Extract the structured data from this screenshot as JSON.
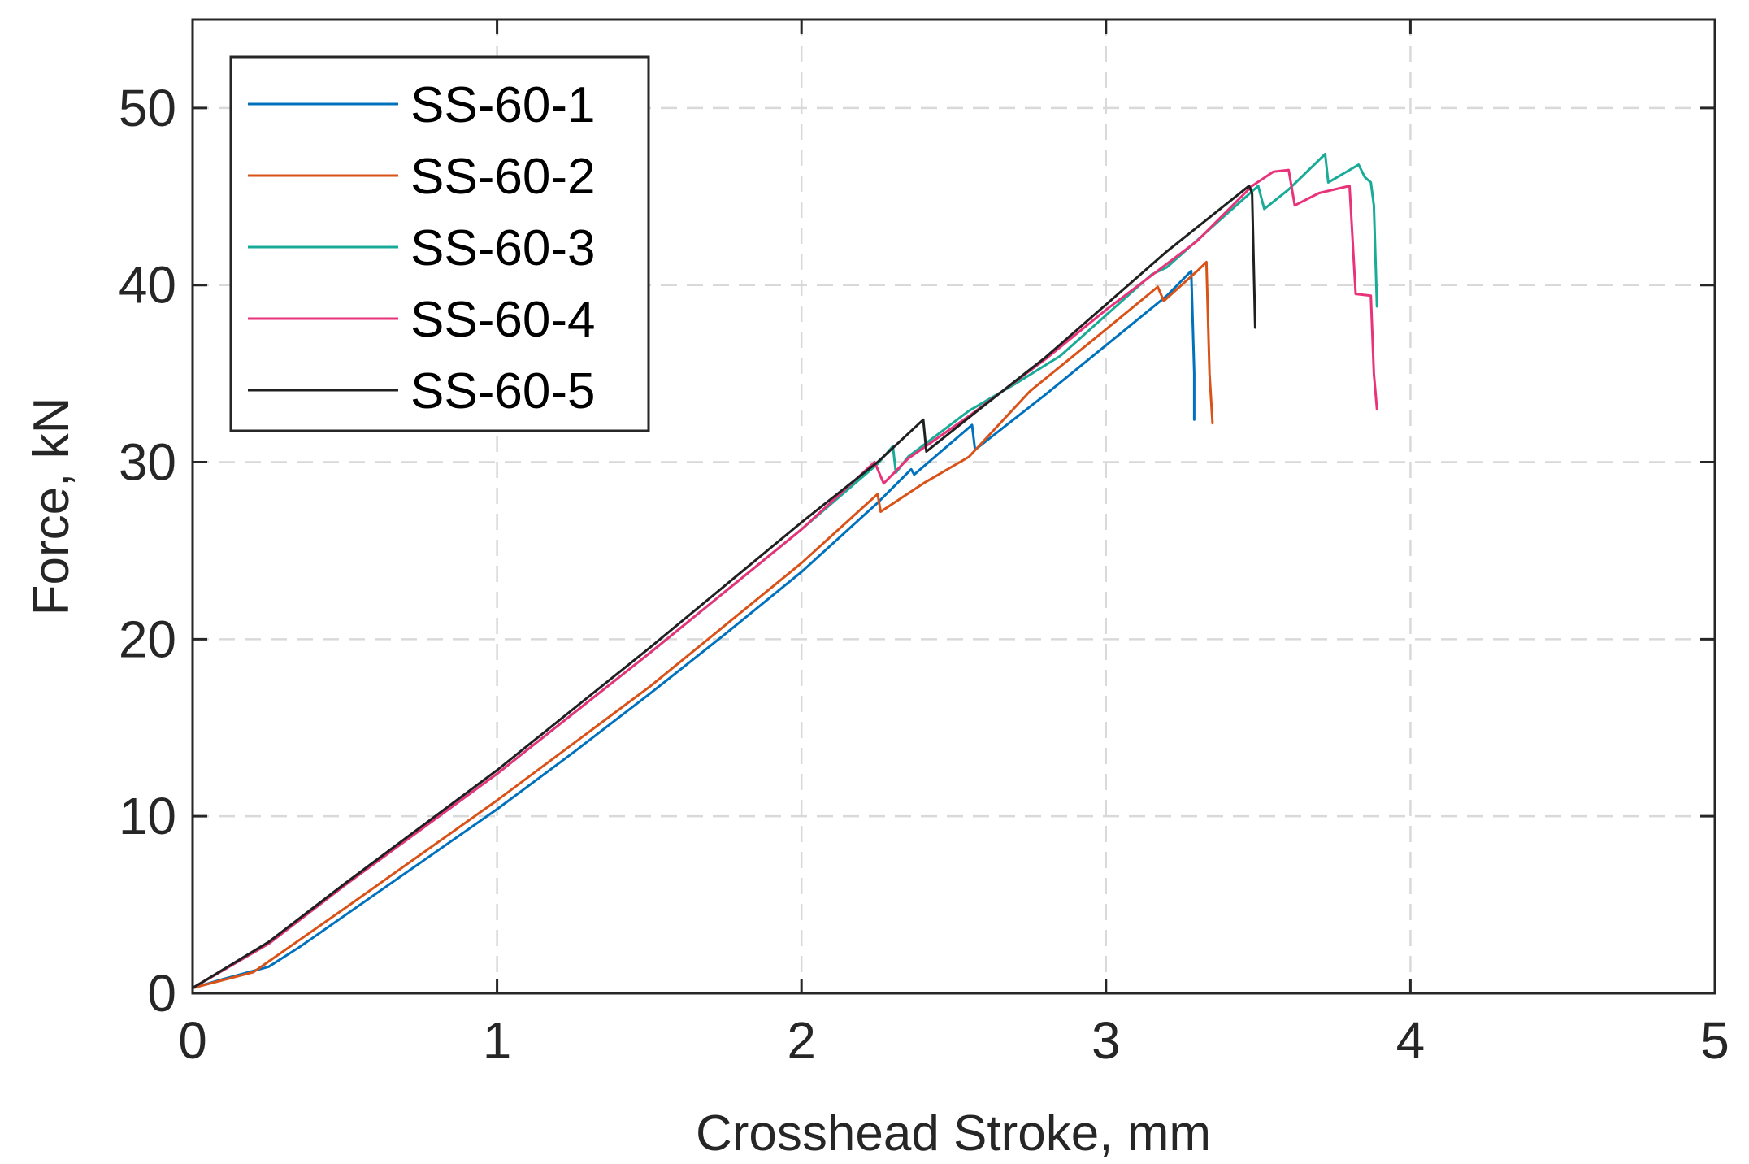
{
  "chart_data": {
    "type": "line",
    "title": "",
    "xlabel": "Crosshead Stroke, mm",
    "ylabel": "Force, kN",
    "xlim": [
      0,
      5
    ],
    "ylim": [
      0,
      55
    ],
    "xticks": [
      0,
      1,
      2,
      3,
      4,
      5
    ],
    "yticks": [
      0,
      10,
      20,
      30,
      40,
      50
    ],
    "grid": true,
    "legend_position": "top-left",
    "series": [
      {
        "name": "SS-60-1",
        "color": "#0072BD",
        "x": [
          0,
          0.1,
          0.25,
          0.35,
          0.5,
          0.75,
          1.0,
          1.25,
          1.5,
          1.75,
          2.0,
          2.25,
          2.36,
          2.37,
          2.56,
          2.57,
          2.8,
          3.0,
          3.2,
          3.28,
          3.29,
          3.29
        ],
        "y": [
          0.3,
          0.8,
          1.5,
          2.6,
          4.4,
          7.4,
          10.4,
          13.6,
          16.9,
          20.3,
          23.8,
          27.7,
          29.6,
          29.3,
          32.1,
          30.7,
          33.8,
          36.6,
          39.4,
          40.8,
          35.0,
          32.4
        ]
      },
      {
        "name": "SS-60-2",
        "color": "#D95319",
        "x": [
          0,
          0.2,
          0.5,
          1.0,
          1.5,
          2.0,
          2.25,
          2.26,
          2.4,
          2.55,
          2.75,
          3.0,
          3.17,
          3.19,
          3.3,
          3.33,
          3.34,
          3.35
        ],
        "y": [
          0.3,
          1.2,
          4.8,
          10.9,
          17.3,
          24.3,
          28.2,
          27.2,
          28.8,
          30.3,
          34.0,
          37.5,
          39.9,
          39.1,
          40.8,
          41.3,
          35.0,
          32.2
        ]
      },
      {
        "name": "SS-60-3",
        "color": "#1AAB98",
        "x": [
          0,
          0.25,
          0.5,
          1.0,
          1.5,
          2.0,
          2.25,
          2.3,
          2.31,
          2.35,
          2.55,
          2.7,
          2.85,
          3.15,
          3.2,
          3.5,
          3.52,
          3.6,
          3.72,
          3.73,
          3.78,
          3.83,
          3.85,
          3.87,
          3.88,
          3.89
        ],
        "y": [
          0.3,
          2.8,
          6.1,
          12.4,
          19.2,
          26.2,
          29.9,
          30.9,
          29.4,
          30.3,
          32.9,
          34.4,
          36.0,
          40.6,
          41.0,
          45.6,
          44.3,
          45.4,
          47.4,
          45.8,
          46.3,
          46.8,
          46.1,
          45.8,
          44.5,
          38.8
        ]
      },
      {
        "name": "SS-60-4",
        "color": "#E8337A",
        "x": [
          0,
          0.25,
          0.5,
          1.0,
          1.5,
          2.0,
          2.24,
          2.27,
          2.35,
          2.55,
          2.8,
          3.0,
          3.3,
          3.48,
          3.55,
          3.6,
          3.62,
          3.7,
          3.8,
          3.82,
          3.87,
          3.88,
          3.89
        ],
        "y": [
          0.3,
          2.8,
          6.1,
          12.4,
          19.2,
          26.2,
          30.0,
          28.8,
          30.2,
          32.6,
          35.8,
          38.6,
          42.5,
          45.6,
          46.4,
          46.5,
          44.5,
          45.2,
          45.6,
          39.5,
          39.4,
          35.0,
          33.0
        ]
      },
      {
        "name": "SS-60-5",
        "color": "#202020",
        "x": [
          0,
          0.25,
          0.5,
          1.0,
          1.5,
          2.0,
          2.25,
          2.4,
          2.41,
          2.6,
          2.8,
          3.0,
          3.2,
          3.47,
          3.48,
          3.49
        ],
        "y": [
          0.3,
          2.9,
          6.2,
          12.6,
          19.5,
          26.6,
          30.0,
          32.4,
          30.6,
          33.2,
          35.9,
          38.9,
          41.9,
          45.6,
          45.2,
          37.6
        ]
      }
    ]
  }
}
